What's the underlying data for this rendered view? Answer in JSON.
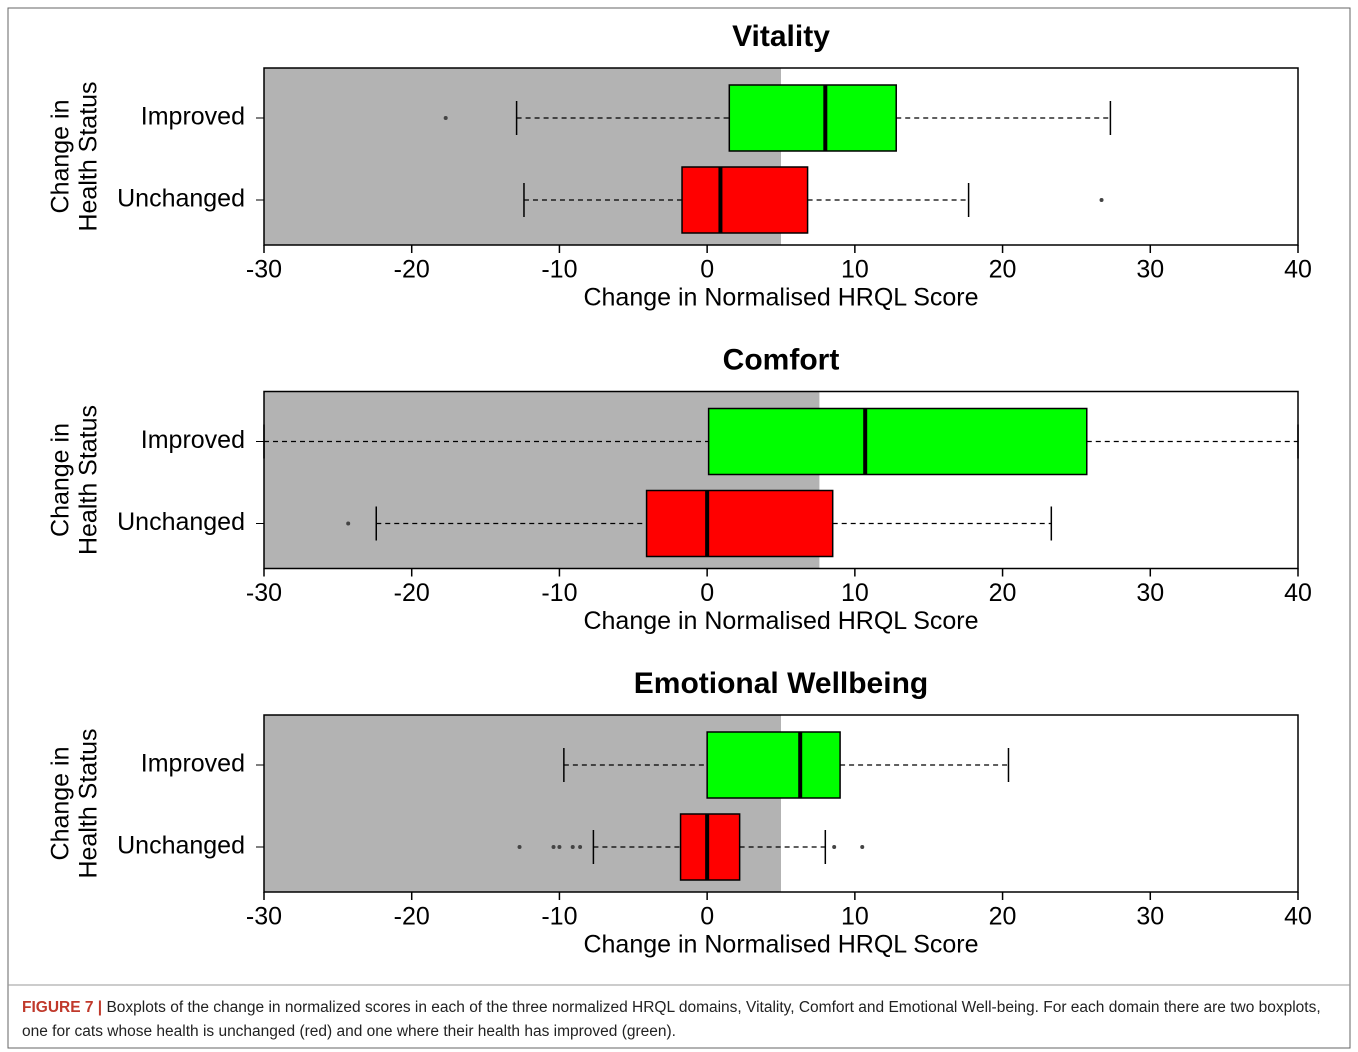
{
  "chart_data": [
    {
      "type": "boxplot",
      "title": "Vitality",
      "xlabel": "Change in Normalised HRQL Score",
      "ylabel": [
        "Change in",
        "Health Status"
      ],
      "categories": [
        "Improved",
        "Unchanged"
      ],
      "xlim": [
        -30,
        40
      ],
      "xticks": [
        -30,
        -20,
        -10,
        0,
        10,
        20,
        30,
        40
      ],
      "shade": {
        "from": -30,
        "to": 5,
        "color": "#b3b3b3"
      },
      "series": [
        {
          "name": "Improved",
          "color": "#00ff00",
          "whislo": -12.9,
          "q1": 1.5,
          "med": 8.0,
          "q3": 12.8,
          "whishi": 27.3,
          "fliers": [
            -17.7
          ]
        },
        {
          "name": "Unchanged",
          "color": "#ff0000",
          "whislo": -12.4,
          "q1": -1.7,
          "med": 0.9,
          "q3": 6.8,
          "whishi": 17.7,
          "fliers": [
            26.7
          ]
        }
      ]
    },
    {
      "type": "boxplot",
      "title": "Comfort",
      "xlabel": "Change in Normalised HRQL Score",
      "ylabel": [
        "Change in",
        "Health Status"
      ],
      "categories": [
        "Improved",
        "Unchanged"
      ],
      "xlim": [
        -30,
        40
      ],
      "xticks": [
        -30,
        -20,
        -10,
        0,
        10,
        20,
        30,
        40
      ],
      "shade": {
        "from": -30,
        "to": 7.6,
        "color": "#b3b3b3"
      },
      "series": [
        {
          "name": "Improved",
          "color": "#00ff00",
          "whislo": -30,
          "q1": 0.1,
          "med": 10.7,
          "q3": 25.7,
          "whishi": 40,
          "fliers": []
        },
        {
          "name": "Unchanged",
          "color": "#ff0000",
          "whislo": -22.4,
          "q1": -4.1,
          "med": 0,
          "q3": 8.5,
          "whishi": 23.3,
          "fliers": [
            -24.3
          ]
        }
      ]
    },
    {
      "type": "boxplot",
      "title": "Emotional Wellbeing",
      "xlabel": "Change in Normalised HRQL Score",
      "ylabel": [
        "Change in",
        "Health Status"
      ],
      "categories": [
        "Improved",
        "Unchanged"
      ],
      "xlim": [
        -30,
        40
      ],
      "xticks": [
        -30,
        -20,
        -10,
        0,
        10,
        20,
        30,
        40
      ],
      "shade": {
        "from": -30,
        "to": 5,
        "color": "#b3b3b3"
      },
      "series": [
        {
          "name": "Improved",
          "color": "#00ff00",
          "whislo": -9.7,
          "q1": 0,
          "med": 6.3,
          "q3": 9.0,
          "whishi": 20.4,
          "fliers": []
        },
        {
          "name": "Unchanged",
          "color": "#ff0000",
          "whislo": -7.7,
          "q1": -1.8,
          "med": 0,
          "q3": 2.2,
          "whishi": 8.0,
          "fliers": [
            -12.7,
            -10.4,
            -10.0,
            -9.1,
            -8.6,
            8.6,
            10.5
          ]
        }
      ]
    }
  ],
  "caption": {
    "label": "FIGURE 7 |",
    "text": "Boxplots of the change in normalized scores in each of the three normalized HRQL domains, Vitality, Comfort and Emotional Well-being. For each domain there are two boxplots, one for cats whose health is unchanged (red) and one where their health has improved (green)."
  }
}
